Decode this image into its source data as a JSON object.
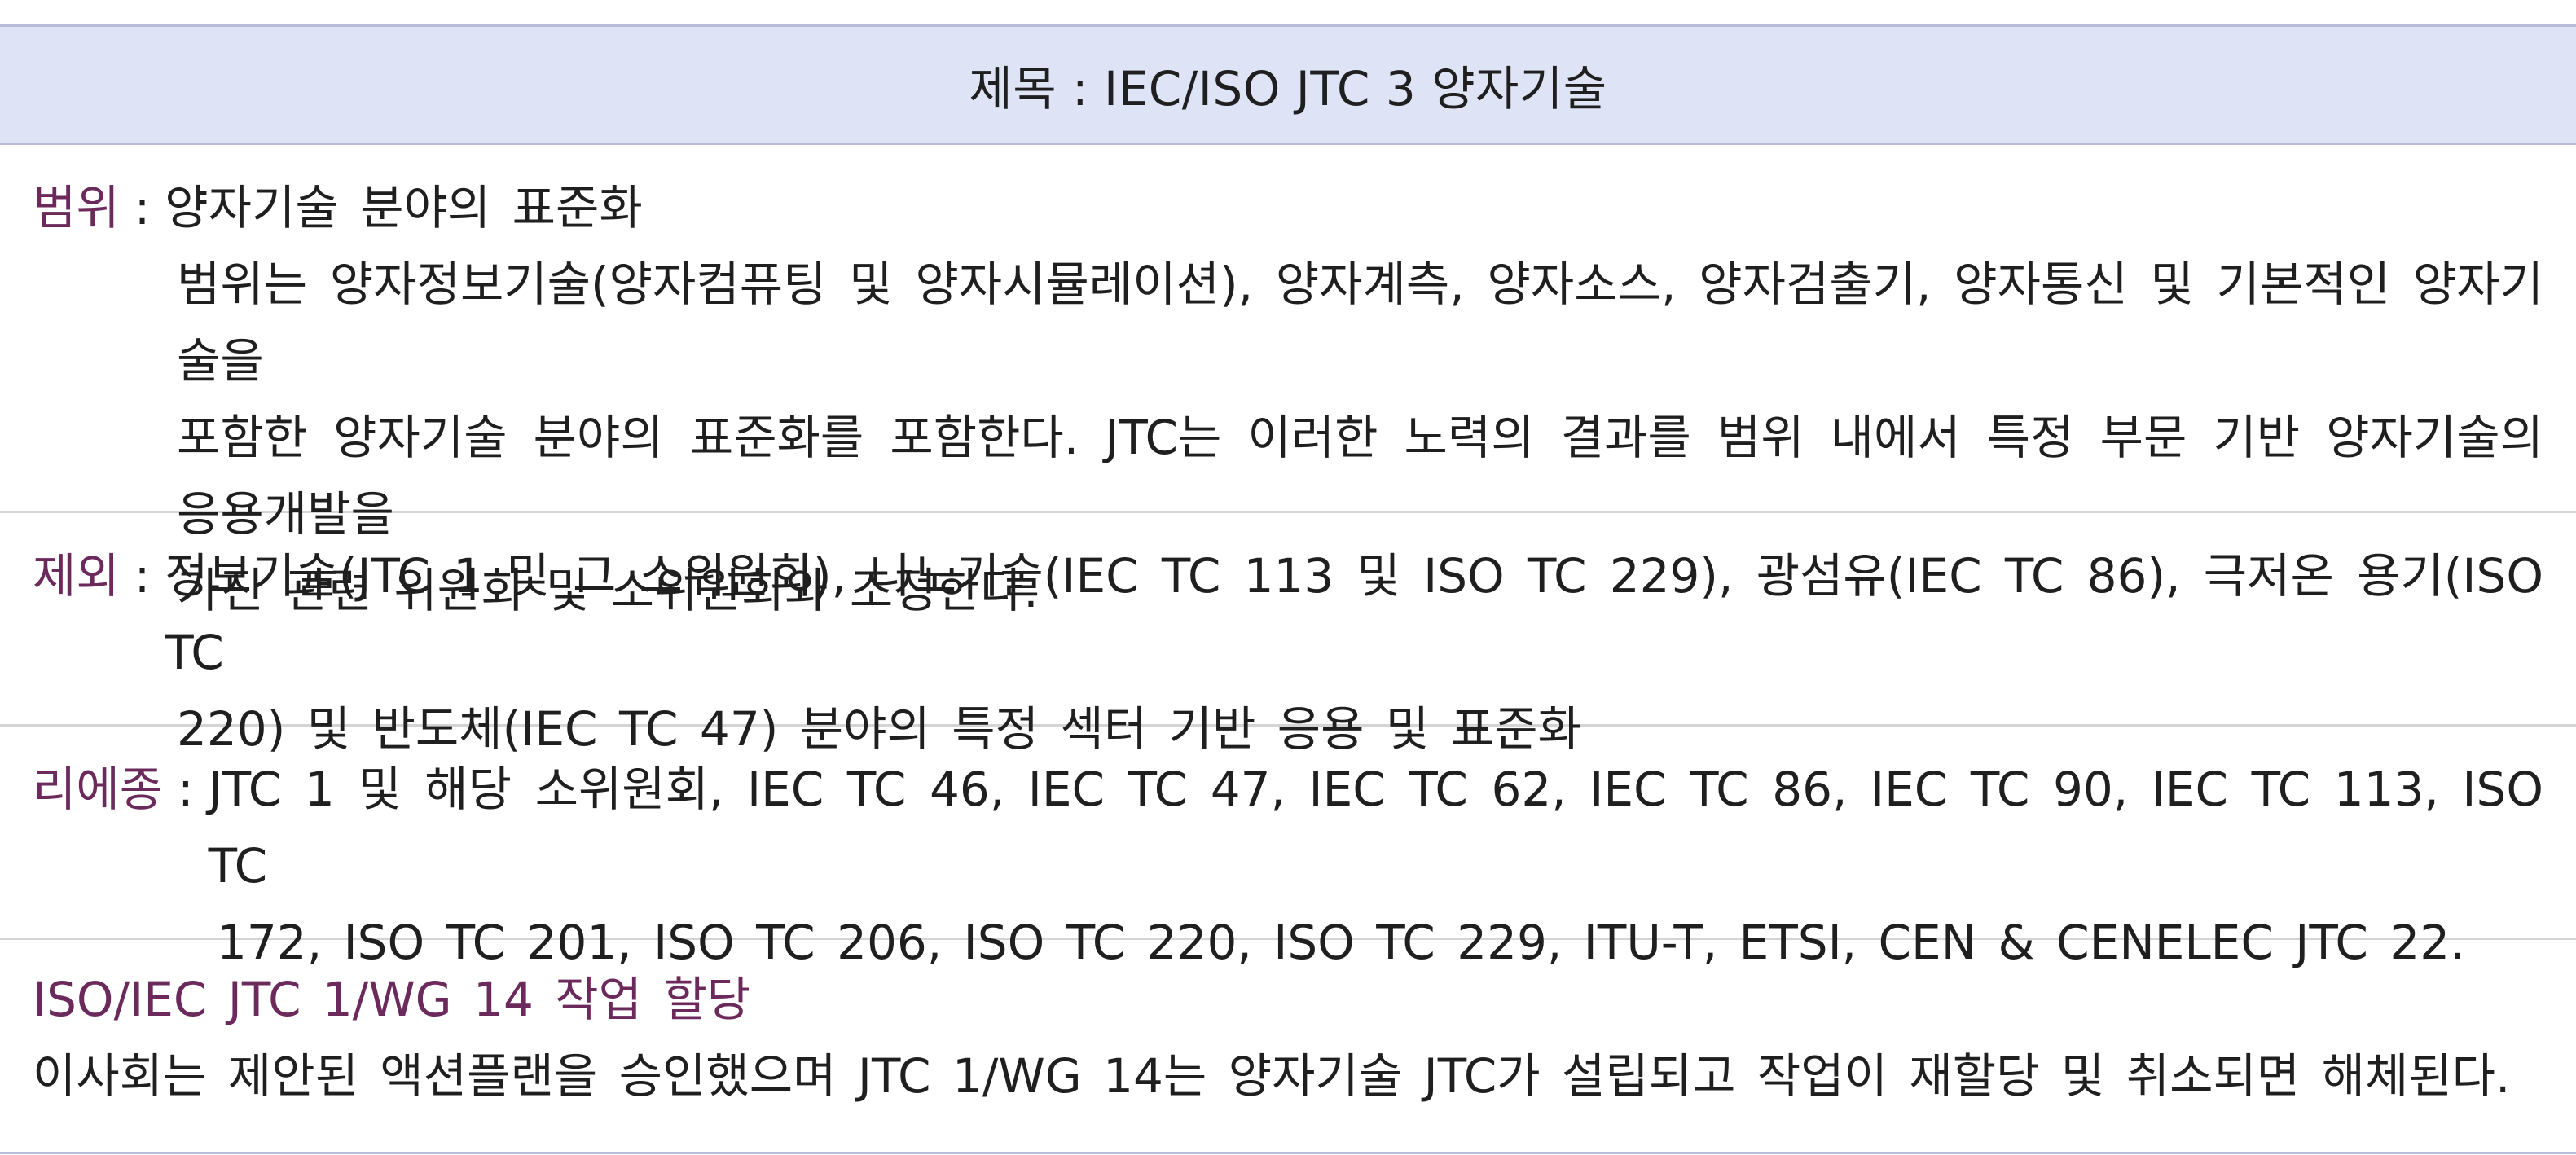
{
  "title": "제목 : IEC/ISO JTC 3 양자기술",
  "scope": {
    "label": "범위",
    "colon": ":",
    "first_line": "양자기술 분야의 표준화",
    "lines": [
      "범위는 양자정보기술(양자컴퓨팅 및 양자시뮬레이션), 양자계측, 양자소스, 양자검출기, 양자통신 및 기본적인 양자기술을",
      "포함한 양자기술 분야의 표준화를 포함한다. JTC는 이러한 노력의 결과를 범위 내에서 특정 부문 기반 양자기술의 응용개발을",
      "가진 관련 위원회 및 소위원회와 조정한다."
    ]
  },
  "exclusion": {
    "label": "제외",
    "colon": ":",
    "first_line": "정보기술(JTC 1 및 그 소위원회), 나노기술(IEC TC 113 및 ISO TC 229), 광섬유(IEC TC 86), 극저온 용기(ISO TC",
    "lines": [
      "220) 및 반도체(IEC TC 47) 분야의 특정 섹터 기반 응용 및 표준화"
    ]
  },
  "liaison": {
    "label": "리에종",
    "colon": ":",
    "first_line": "JTC 1 및 해당 소위원회, IEC TC 46, IEC TC 47, IEC TC 62, IEC TC 86, IEC TC 90, IEC TC 113, ISO TC",
    "lines": [
      "172, ISO TC 201, ISO TC 206, ISO TC 220, ISO TC 229, ITU-T, ETSI, CEN & CENELEC JTC 22."
    ]
  },
  "wg": {
    "heading": "ISO/IEC JTC 1/WG 14 작업 할당",
    "text": "이사회는 제안된 액션플랜을 승인했으며 JTC 1/WG 14는 양자기술 JTC가 설립되고 작업이 재할당 및 취소되면 해체된다."
  },
  "colors": {
    "header_bg": "#dfe3f6",
    "label_color": "#6b2a5b",
    "border": "#b9bbd8"
  }
}
